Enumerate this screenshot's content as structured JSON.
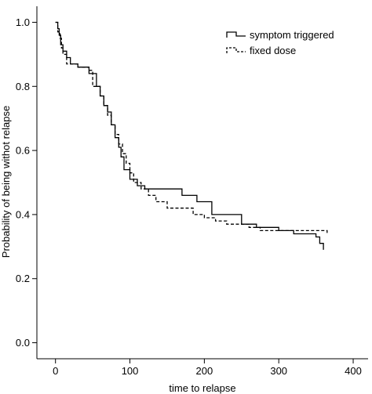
{
  "chart_data": {
    "type": "line",
    "xlabel": "time to relapse",
    "ylabel": "Probability of being withot relapse",
    "xlim": [
      -25,
      420
    ],
    "ylim": [
      -0.05,
      1.05
    ],
    "x_ticks": [
      0,
      100,
      200,
      300,
      400
    ],
    "x_tick_labels": [
      "0",
      "100",
      "200",
      "300",
      "400"
    ],
    "y_ticks": [
      0.0,
      0.2,
      0.4,
      0.6,
      0.8,
      1.0
    ],
    "y_tick_labels": [
      "0.0",
      "0.2",
      "0.4",
      "0.6",
      "0.8",
      "1.0"
    ],
    "grid": false,
    "legend_position": "top-right",
    "series": [
      {
        "name": "symptom triggered",
        "style": "solid",
        "color": "#000000",
        "step": true,
        "x": [
          0,
          3,
          5,
          7,
          10,
          15,
          20,
          30,
          45,
          55,
          60,
          65,
          70,
          75,
          80,
          85,
          88,
          92,
          100,
          110,
          120,
          130,
          160,
          170,
          180,
          190,
          200,
          210,
          250,
          270,
          280,
          300,
          320,
          340,
          350,
          355,
          360
        ],
        "y": [
          1.0,
          0.98,
          0.96,
          0.93,
          0.91,
          0.89,
          0.87,
          0.86,
          0.84,
          0.8,
          0.77,
          0.74,
          0.72,
          0.68,
          0.64,
          0.61,
          0.58,
          0.54,
          0.51,
          0.49,
          0.48,
          0.48,
          0.48,
          0.46,
          0.46,
          0.44,
          0.44,
          0.4,
          0.37,
          0.36,
          0.36,
          0.35,
          0.34,
          0.34,
          0.33,
          0.31,
          0.29
        ]
      },
      {
        "name": "fixed dose",
        "style": "dashed",
        "color": "#000000",
        "step": true,
        "x": [
          0,
          3,
          6,
          8,
          10,
          15,
          30,
          45,
          50,
          60,
          65,
          70,
          75,
          80,
          85,
          90,
          95,
          100,
          105,
          115,
          125,
          135,
          150,
          175,
          185,
          200,
          215,
          230,
          260,
          275,
          300,
          330,
          365
        ],
        "y": [
          1.0,
          0.97,
          0.95,
          0.92,
          0.9,
          0.87,
          0.86,
          0.85,
          0.8,
          0.77,
          0.74,
          0.71,
          0.68,
          0.65,
          0.62,
          0.59,
          0.56,
          0.53,
          0.5,
          0.48,
          0.46,
          0.44,
          0.42,
          0.42,
          0.4,
          0.39,
          0.38,
          0.37,
          0.36,
          0.35,
          0.35,
          0.35,
          0.34
        ]
      }
    ]
  }
}
